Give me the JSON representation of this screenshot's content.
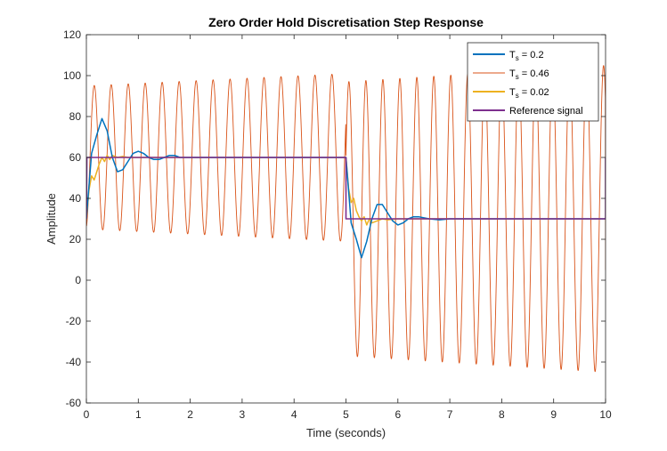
{
  "chart_data": {
    "type": "line",
    "title": "Zero Order Hold Discretisation Step Response",
    "xlabel": "Time (seconds)",
    "ylabel": "Amplitude",
    "xlim": [
      0,
      10
    ],
    "ylim": [
      -60,
      120
    ],
    "xticks": [
      0,
      1,
      2,
      3,
      4,
      5,
      6,
      7,
      8,
      9,
      10
    ],
    "yticks": [
      -60,
      -40,
      -20,
      0,
      20,
      40,
      60,
      80,
      100,
      120
    ],
    "legend_position": "top-right",
    "grid": false,
    "series": [
      {
        "name": "T_s = 0.2",
        "legend": {
          "prefix": "T",
          "sub": "s",
          "suffix": " = 0.2"
        },
        "color": "#0072BD",
        "x": [
          0,
          0.1,
          0.2,
          0.3,
          0.4,
          0.5,
          0.6,
          0.7,
          0.8,
          0.9,
          1.0,
          1.1,
          1.2,
          1.3,
          1.4,
          1.5,
          1.6,
          1.7,
          1.8,
          2.0,
          2.2,
          2.4,
          3.0,
          4.0,
          5.0,
          5.1,
          5.2,
          5.3,
          5.4,
          5.5,
          5.6,
          5.7,
          5.8,
          5.9,
          6.0,
          6.1,
          6.2,
          6.3,
          6.4,
          6.6,
          6.8,
          7.0,
          8.0,
          10.0
        ],
        "y": [
          30,
          62,
          71,
          79,
          73,
          60,
          53,
          54,
          58,
          62,
          63,
          62,
          60,
          59,
          59,
          60,
          61,
          61,
          60,
          60,
          60,
          60,
          60,
          60,
          60,
          28,
          20,
          11,
          19,
          30,
          37,
          37,
          33,
          29,
          27,
          28,
          30,
          31,
          31,
          30,
          29.5,
          30,
          30,
          30
        ]
      },
      {
        "name": "T_s = 0.46",
        "legend": {
          "prefix": "T",
          "sub": "s",
          "suffix": " = 0.46"
        },
        "color": "#D95319",
        "oscillation": {
          "period": 0.327,
          "phase_start": 0.07,
          "segments": [
            {
              "t_start": 0,
              "t_end": 5,
              "center": 60,
              "amplitude_start": 35,
              "amplitude_end": 41
            },
            {
              "t_start": 5,
              "t_end": 10,
              "center": 30,
              "amplitude_start": 67,
              "amplitude_end": 75
            }
          ],
          "y_at_t0": 30,
          "y_at_t10": 5
        }
      },
      {
        "name": "T_s = 0.02",
        "legend": {
          "prefix": "T",
          "sub": "s",
          "suffix": " = 0.02"
        },
        "color": "#EDB120",
        "x": [
          0,
          0.05,
          0.1,
          0.15,
          0.2,
          0.25,
          0.3,
          0.35,
          0.4,
          0.45,
          0.5,
          0.6,
          0.7,
          0.8,
          1.0,
          5.0,
          5.05,
          5.1,
          5.15,
          5.2,
          5.25,
          5.3,
          5.35,
          5.4,
          5.45,
          5.5,
          5.6,
          5.7,
          5.8,
          6.0,
          10.0
        ],
        "y": [
          30,
          44,
          51,
          49,
          53,
          57,
          60,
          58,
          61,
          59,
          61,
          60,
          60.5,
          60,
          60,
          60,
          45,
          38,
          40,
          34,
          31,
          29,
          31,
          27,
          30,
          28,
          29,
          30,
          29.5,
          30,
          30
        ]
      },
      {
        "name": "Reference signal",
        "legend": {
          "prefix": "Reference signal",
          "sub": "",
          "suffix": ""
        },
        "color": "#7E2F8E",
        "x": [
          0,
          0.01,
          5.0,
          5.0,
          10.0,
          10.0
        ],
        "y": [
          30,
          60,
          60,
          30,
          30,
          60
        ]
      }
    ]
  }
}
